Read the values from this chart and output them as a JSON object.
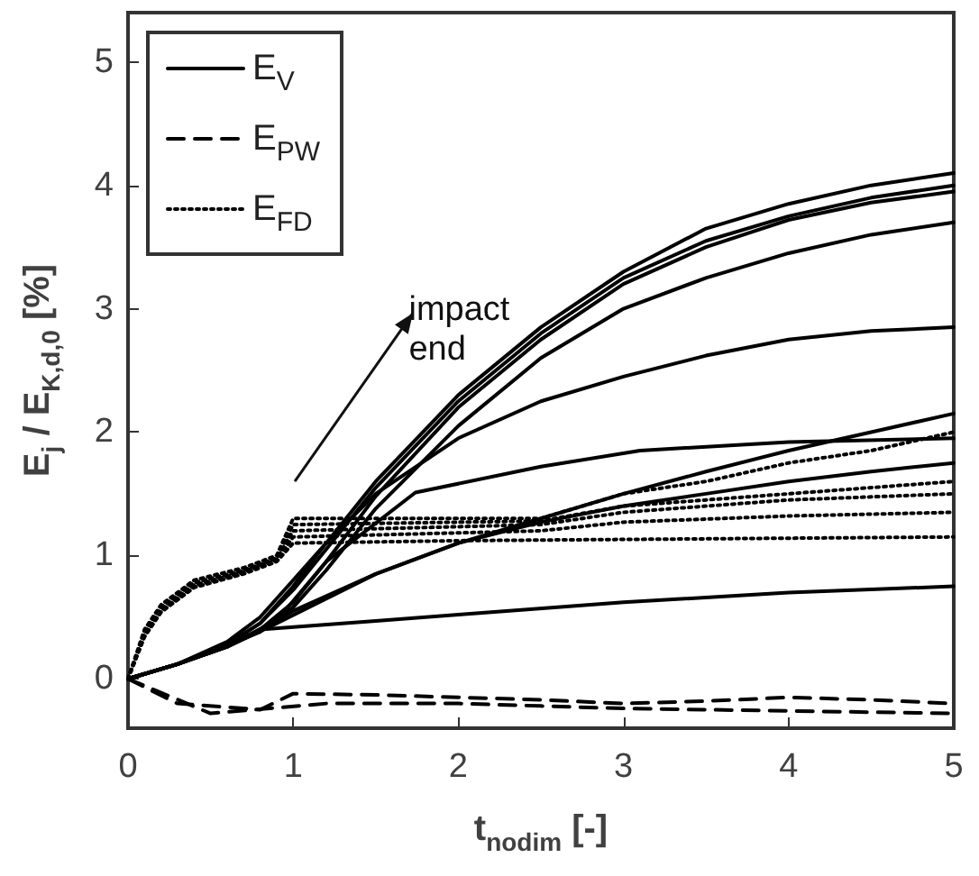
{
  "chart_data": {
    "type": "line",
    "xlabel": "t$_{nodim}$ [-]",
    "ylabel": "E$_{j}$ / E$_{K,d,0}$ [%]",
    "xlim": [
      0,
      5
    ],
    "ylim": [
      -0.4,
      5.4
    ],
    "xticks": [
      0,
      1,
      2,
      3,
      4,
      5
    ],
    "yticks": [
      0,
      1,
      2,
      3,
      4,
      5
    ],
    "grid": false,
    "legend": "top left",
    "marker": "none",
    "annotations": [
      "impact\nend"
    ],
    "series": [
      {
        "name": "E$_{V}$",
        "color": "#000000",
        "line_style": "solid",
        "x": [
          0,
          0.3,
          0.6,
          0.8,
          1,
          1.2,
          1.5,
          2,
          2.5,
          3,
          3.5,
          4,
          4.5,
          5
        ],
        "values": [
          0,
          0.12,
          0.3,
          0.5,
          0.8,
          1.1,
          1.6,
          2.3,
          2.85,
          3.3,
          3.65,
          3.85,
          4.0,
          4.1
        ]
      },
      {
        "color": "#000000",
        "line_style": "solid",
        "x": [
          0,
          0.3,
          0.6,
          0.8,
          1,
          1.2,
          1.5,
          2,
          2.5,
          3,
          3.5,
          4,
          4.5,
          5
        ],
        "values": [
          0,
          0.12,
          0.28,
          0.45,
          0.72,
          1.05,
          1.55,
          2.25,
          2.8,
          3.25,
          3.55,
          3.75,
          3.9,
          4.0
        ]
      },
      {
        "color": "#000000",
        "line_style": "solid",
        "x": [
          0,
          0.3,
          0.6,
          0.8,
          1,
          1.2,
          1.5,
          2,
          2.5,
          3,
          3.5,
          4,
          4.5,
          5
        ],
        "values": [
          0,
          0.12,
          0.27,
          0.4,
          0.62,
          0.95,
          1.48,
          2.2,
          2.75,
          3.2,
          3.5,
          3.72,
          3.86,
          3.95
        ]
      },
      {
        "color": "#000000",
        "line_style": "solid",
        "x": [
          0,
          0.3,
          0.6,
          0.8,
          1,
          1.2,
          1.5,
          2,
          2.5,
          3,
          3.5,
          4,
          4.5,
          5
        ],
        "values": [
          0,
          0.12,
          0.27,
          0.38,
          0.58,
          0.88,
          1.38,
          2.05,
          2.6,
          3.0,
          3.25,
          3.45,
          3.6,
          3.7
        ]
      },
      {
        "color": "#000000",
        "line_style": "solid",
        "x": [
          0,
          0.3,
          0.6,
          0.8,
          1,
          1.2,
          1.5,
          2,
          2.5,
          3,
          3.5,
          4,
          4.5,
          5
        ],
        "values": [
          0,
          0.12,
          0.28,
          0.45,
          0.75,
          1.1,
          1.5,
          1.95,
          2.25,
          2.45,
          2.62,
          2.75,
          2.82,
          2.85
        ]
      },
      {
        "color": "#000000",
        "line_style": "solid",
        "x": [
          0,
          0.3,
          0.6,
          0.88,
          1.2,
          1.74,
          2.5,
          3.1,
          4,
          5
        ],
        "values": [
          0,
          0.12,
          0.26,
          0.44,
          0.95,
          1.51,
          1.72,
          1.85,
          1.92,
          1.95
        ]
      },
      {
        "color": "#000000",
        "line_style": "solid",
        "x": [
          0,
          0.3,
          0.6,
          0.9,
          1.5,
          2,
          2.5,
          3,
          3.5,
          4,
          4.5,
          5
        ],
        "values": [
          0,
          0.12,
          0.26,
          0.45,
          0.85,
          1.1,
          1.3,
          1.5,
          1.68,
          1.85,
          2.0,
          2.15
        ]
      },
      {
        "color": "#000000",
        "line_style": "solid",
        "x": [
          0,
          0.3,
          0.6,
          1,
          1.5,
          2,
          2.5,
          3,
          3.5,
          4,
          4.5,
          5
        ],
        "values": [
          0,
          0.12,
          0.26,
          0.55,
          0.85,
          1.1,
          1.27,
          1.4,
          1.5,
          1.6,
          1.68,
          1.75
        ]
      },
      {
        "color": "#000000",
        "line_style": "solid",
        "x": [
          0,
          0.3,
          0.6,
          0.8,
          1.5,
          2,
          3,
          4,
          5
        ],
        "values": [
          0,
          0.12,
          0.26,
          0.4,
          0.47,
          0.52,
          0.62,
          0.7,
          0.75
        ]
      },
      {
        "name": "E$_{PW}$",
        "color": "#000000",
        "line_style": "dashed",
        "x": [
          0,
          0.3,
          0.8,
          1,
          1.5,
          2,
          2.5,
          3,
          3.5,
          4,
          4.5,
          5
        ],
        "values": [
          0,
          -0.2,
          -0.25,
          -0.12,
          -0.13,
          -0.15,
          -0.17,
          -0.2,
          -0.18,
          -0.15,
          -0.17,
          -0.2
        ]
      },
      {
        "color": "#000000",
        "line_style": "dashed",
        "x": [
          0,
          0.5,
          1.2,
          2,
          2.5,
          3,
          3.5,
          4,
          4.5,
          5
        ],
        "values": [
          0,
          -0.28,
          -0.2,
          -0.2,
          -0.22,
          -0.24,
          -0.25,
          -0.26,
          -0.27,
          -0.28
        ]
      },
      {
        "name": "E$_{FD}$",
        "color": "#000000",
        "line_style": "dotted",
        "x": [
          0,
          0.1,
          0.2,
          0.4,
          0.7,
          0.9,
          1,
          2.5,
          3,
          3.5,
          4,
          4.5,
          5
        ],
        "values": [
          0,
          0.4,
          0.6,
          0.8,
          0.9,
          1.0,
          1.3,
          1.3,
          1.5,
          1.6,
          1.75,
          1.85,
          2.0
        ]
      },
      {
        "color": "#000000",
        "line_style": "dotted",
        "x": [
          0,
          0.1,
          0.2,
          0.4,
          0.7,
          0.9,
          1,
          2.5,
          3,
          4,
          5
        ],
        "values": [
          0,
          0.38,
          0.58,
          0.78,
          0.88,
          0.98,
          1.25,
          1.28,
          1.4,
          1.5,
          1.6
        ]
      },
      {
        "color": "#000000",
        "line_style": "dotted",
        "x": [
          0,
          0.1,
          0.2,
          0.4,
          0.7,
          0.9,
          1,
          2.5,
          3,
          4,
          5
        ],
        "values": [
          0,
          0.36,
          0.56,
          0.76,
          0.87,
          0.97,
          1.2,
          1.25,
          1.35,
          1.45,
          1.5
        ]
      },
      {
        "color": "#000000",
        "line_style": "dotted",
        "x": [
          0,
          0.1,
          0.2,
          0.4,
          0.7,
          0.9,
          1,
          2.5,
          3,
          4,
          5
        ],
        "values": [
          0,
          0.35,
          0.55,
          0.75,
          0.86,
          0.96,
          1.15,
          1.2,
          1.27,
          1.32,
          1.35
        ]
      },
      {
        "color": "#000000",
        "line_style": "dotted",
        "x": [
          0,
          0.1,
          0.2,
          0.4,
          0.7,
          0.9,
          1,
          2,
          3,
          4,
          5
        ],
        "values": [
          0,
          0.34,
          0.54,
          0.74,
          0.85,
          0.95,
          1.1,
          1.12,
          1.13,
          1.14,
          1.15
        ]
      }
    ]
  }
}
